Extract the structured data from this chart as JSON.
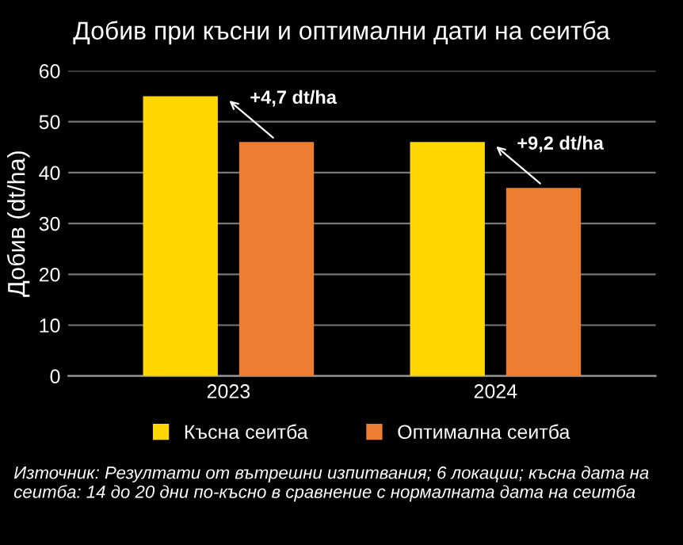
{
  "chart_data": {
    "type": "bar",
    "title": "Добив при късни и оптимални дати на сеитба",
    "ylabel": "Добив (dt/ha)",
    "categories": [
      "2023",
      "2024"
    ],
    "series": [
      {
        "name": "Късна сеитба",
        "color": "#ffd700",
        "values": [
          55,
          46
        ]
      },
      {
        "name": "Оптимална сеитба",
        "color": "#ed7d31",
        "values": [
          46,
          37
        ]
      }
    ],
    "ylim": [
      0,
      60
    ],
    "yticks": [
      0,
      10,
      20,
      30,
      40,
      50,
      60
    ],
    "grid": "y",
    "legend": "bottom",
    "annotations": [
      "+4,7 dt/ha",
      "+9,2 dt/ha",
      "Източник: Резултати от вътрешни изпитвания; 6 локации; късна дата на сеитба: 14 до 20 дни по-късно в сравнение с нормалната дата на сеитба"
    ]
  }
}
